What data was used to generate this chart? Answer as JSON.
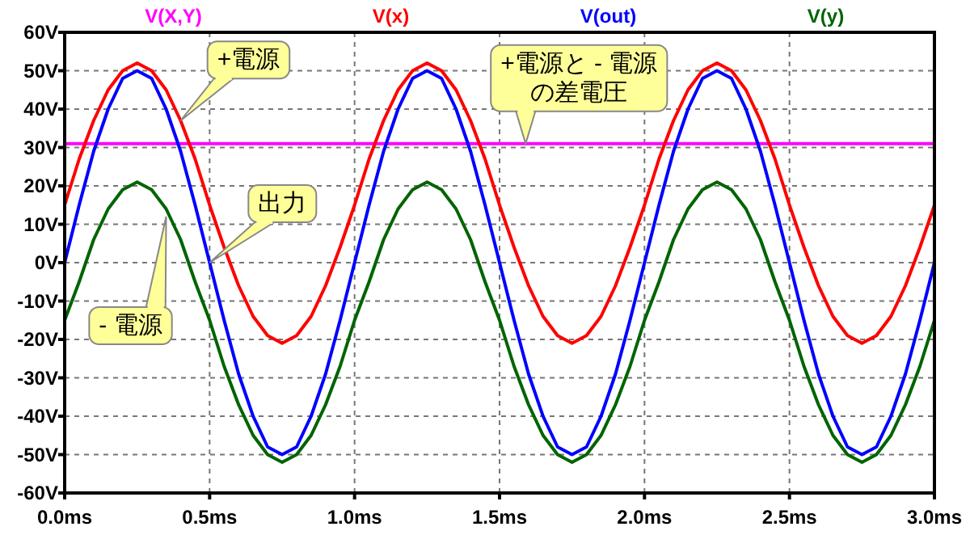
{
  "chart_data": {
    "type": "line",
    "x": [
      0,
      0.05,
      0.1,
      0.15,
      0.2,
      0.25,
      0.3,
      0.35,
      0.4,
      0.45,
      0.5,
      0.55,
      0.6,
      0.65,
      0.7,
      0.75,
      0.8,
      0.85,
      0.9,
      0.95,
      1,
      1.05,
      1.1,
      1.15,
      1.2,
      1.25,
      1.3,
      1.35,
      1.4,
      1.45,
      1.5,
      1.55,
      1.6,
      1.65,
      1.7,
      1.75,
      1.8,
      1.85,
      1.9,
      1.95,
      2,
      2.05,
      2.1,
      2.15,
      2.2,
      2.25,
      2.3,
      2.35,
      2.4,
      2.45,
      2.5,
      2.55,
      2.6,
      2.65,
      2.7,
      2.75,
      2.8,
      2.85,
      2.9,
      2.95,
      3
    ],
    "series": [
      {
        "name": "V(X,Y)",
        "color": "#ff00ff",
        "x": [
          0,
          3
        ],
        "values": [
          31,
          31
        ]
      },
      {
        "name": "V(x)",
        "color": "#ff0000",
        "values": [
          15,
          27,
          37,
          45,
          50,
          52,
          50,
          45,
          37,
          27,
          15,
          4,
          -6,
          -14,
          -19,
          -21,
          -19,
          -14,
          -6,
          4,
          15,
          27,
          37,
          45,
          50,
          52,
          50,
          45,
          37,
          27,
          15,
          4,
          -6,
          -14,
          -19,
          -21,
          -19,
          -14,
          -6,
          4,
          15,
          27,
          37,
          45,
          50,
          52,
          50,
          45,
          37,
          27,
          15,
          4,
          -6,
          -14,
          -19,
          -21,
          -19,
          -14,
          -6,
          4,
          15
        ]
      },
      {
        "name": "V(out)",
        "color": "#0000ff",
        "values": [
          0,
          15,
          29,
          40,
          48,
          50,
          48,
          40,
          29,
          15,
          0,
          -15,
          -29,
          -40,
          -48,
          -50,
          -48,
          -40,
          -29,
          -15,
          0,
          15,
          29,
          40,
          48,
          50,
          48,
          40,
          29,
          15,
          0,
          -15,
          -29,
          -40,
          -48,
          -50,
          -48,
          -40,
          -29,
          -15,
          0,
          15,
          29,
          40,
          48,
          50,
          48,
          40,
          29,
          15,
          0,
          -15,
          -29,
          -40,
          -48,
          -50,
          -48,
          -40,
          -29,
          -15,
          0
        ]
      },
      {
        "name": "V(y)",
        "color": "#006400",
        "values": [
          -15,
          -5,
          6,
          14,
          19,
          21,
          19,
          14,
          6,
          -5,
          -15,
          -27,
          -37,
          -45,
          -50,
          -52,
          -50,
          -45,
          -37,
          -27,
          -15,
          -5,
          6,
          14,
          19,
          21,
          19,
          14,
          6,
          -5,
          -15,
          -27,
          -37,
          -45,
          -50,
          -52,
          -50,
          -45,
          -37,
          -27,
          -15,
          -5,
          6,
          14,
          19,
          21,
          19,
          14,
          6,
          -5,
          -15,
          -27,
          -37,
          -45,
          -50,
          -52,
          -50,
          -45,
          -37,
          -27,
          -15
        ]
      }
    ],
    "xlim": [
      0,
      3
    ],
    "ylim": [
      -60,
      60
    ],
    "xticks": [
      {
        "value": 0,
        "label": "0.0ms"
      },
      {
        "value": 0.5,
        "label": "0.5ms"
      },
      {
        "value": 1,
        "label": "1.0ms"
      },
      {
        "value": 1.5,
        "label": "1.5ms"
      },
      {
        "value": 2,
        "label": "2.0ms"
      },
      {
        "value": 2.5,
        "label": "2.5ms"
      },
      {
        "value": 3,
        "label": "3.0ms"
      }
    ],
    "yticks": [
      {
        "value": -60,
        "label": "-60V"
      },
      {
        "value": -50,
        "label": "-50V"
      },
      {
        "value": -40,
        "label": "-40V"
      },
      {
        "value": -30,
        "label": "-30V"
      },
      {
        "value": -20,
        "label": "-20V"
      },
      {
        "value": -10,
        "label": "-10V"
      },
      {
        "value": 0,
        "label": "0V"
      },
      {
        "value": 10,
        "label": "10V"
      },
      {
        "value": 20,
        "label": "20V"
      },
      {
        "value": 30,
        "label": "30V"
      },
      {
        "value": 40,
        "label": "40V"
      },
      {
        "value": 50,
        "label": "50V"
      },
      {
        "value": 60,
        "label": "60V"
      }
    ],
    "annotations": [
      {
        "text": "+電源",
        "x": 0.4,
        "y": 37
      },
      {
        "text": "出力",
        "x": 0.5,
        "y": 0
      },
      {
        "text": "- 電源",
        "x": 0.35,
        "y": 12
      },
      {
        "text": "+電源と - 電源の差電圧",
        "x": 1.59,
        "y": 31
      }
    ],
    "grid": true,
    "legend": "top",
    "line_style": "solid",
    "marker": "none"
  }
}
